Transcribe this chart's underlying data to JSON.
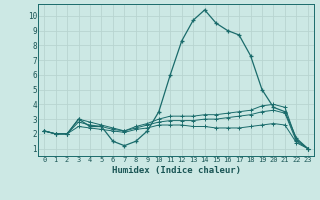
{
  "xlabel": "Humidex (Indice chaleur)",
  "background_color": "#cce8e4",
  "grid_color": "#b8d4d0",
  "line_color": "#1a6b6b",
  "text_color": "#1a5555",
  "xlim": [
    -0.5,
    23.5
  ],
  "ylim": [
    0.5,
    10.8
  ],
  "xticks": [
    0,
    1,
    2,
    3,
    4,
    5,
    6,
    7,
    8,
    9,
    10,
    11,
    12,
    13,
    14,
    15,
    16,
    17,
    18,
    19,
    20,
    21,
    22,
    23
  ],
  "yticks": [
    1,
    2,
    3,
    4,
    5,
    6,
    7,
    8,
    9,
    10
  ],
  "series": [
    {
      "x": [
        0,
        1,
        2,
        3,
        4,
        5,
        6,
        7,
        8,
        9,
        10,
        11,
        12,
        13,
        14,
        15,
        16,
        17,
        18,
        19,
        20,
        21,
        22,
        23
      ],
      "y": [
        2.2,
        2.0,
        2.0,
        3.0,
        2.5,
        2.5,
        1.5,
        1.2,
        1.5,
        2.2,
        3.5,
        6.0,
        8.3,
        9.7,
        10.4,
        9.5,
        9.0,
        8.7,
        7.3,
        5.0,
        3.8,
        3.5,
        1.7,
        1.0
      ]
    },
    {
      "x": [
        0,
        1,
        2,
        3,
        4,
        5,
        6,
        7,
        8,
        9,
        10,
        11,
        12,
        13,
        14,
        15,
        16,
        17,
        18,
        19,
        20,
        21,
        22,
        23
      ],
      "y": [
        2.2,
        2.0,
        2.0,
        3.0,
        2.8,
        2.6,
        2.4,
        2.2,
        2.5,
        2.7,
        3.0,
        3.2,
        3.2,
        3.2,
        3.3,
        3.3,
        3.4,
        3.5,
        3.6,
        3.9,
        4.0,
        3.8,
        1.6,
        1.0
      ]
    },
    {
      "x": [
        0,
        1,
        2,
        3,
        4,
        5,
        6,
        7,
        8,
        9,
        10,
        11,
        12,
        13,
        14,
        15,
        16,
        17,
        18,
        19,
        20,
        21,
        22,
        23
      ],
      "y": [
        2.2,
        2.0,
        2.0,
        2.8,
        2.6,
        2.5,
        2.3,
        2.2,
        2.4,
        2.6,
        2.8,
        2.9,
        2.9,
        2.9,
        3.0,
        3.0,
        3.1,
        3.2,
        3.3,
        3.5,
        3.6,
        3.4,
        1.5,
        1.0
      ]
    },
    {
      "x": [
        0,
        1,
        2,
        3,
        4,
        5,
        6,
        7,
        8,
        9,
        10,
        11,
        12,
        13,
        14,
        15,
        16,
        17,
        18,
        19,
        20,
        21,
        22,
        23
      ],
      "y": [
        2.2,
        2.0,
        2.0,
        2.5,
        2.4,
        2.3,
        2.2,
        2.1,
        2.3,
        2.4,
        2.6,
        2.6,
        2.6,
        2.5,
        2.5,
        2.4,
        2.4,
        2.4,
        2.5,
        2.6,
        2.7,
        2.6,
        1.4,
        1.0
      ]
    }
  ]
}
